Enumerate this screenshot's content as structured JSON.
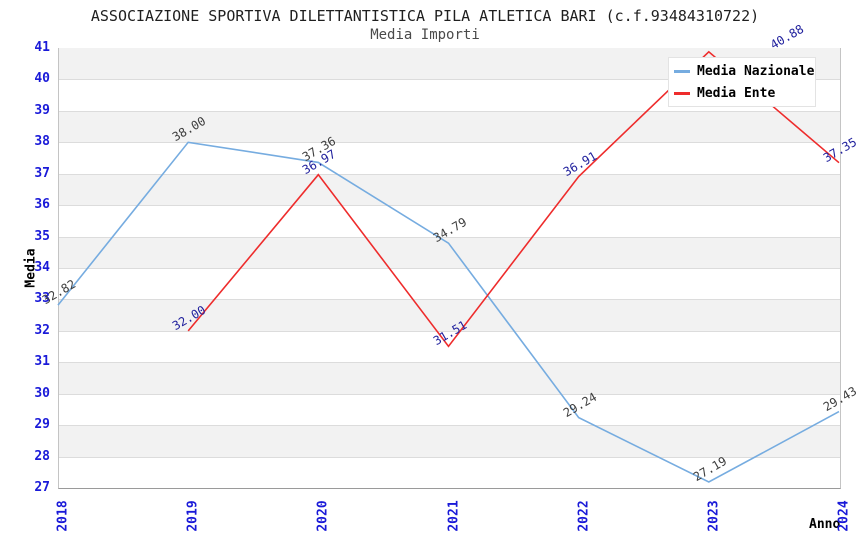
{
  "header": {
    "title": "ASSOCIAZIONE SPORTIVA DILETTANTISTICA PILA ATLETICA BARI (c.f.93484310722)",
    "subtitle": "Media Importi"
  },
  "chart_data": {
    "type": "line",
    "title": "ASSOCIAZIONE SPORTIVA DILETTANTISTICA PILA ATLETICA BARI (c.f.93484310722)",
    "subtitle": "Media Importi",
    "xlabel": "Anno",
    "ylabel": "Media",
    "x": [
      2018,
      2019,
      2020,
      2021,
      2022,
      2023,
      2024
    ],
    "series": [
      {
        "name": "Media Nazionale",
        "color": "#76ace0",
        "label_color": "#3d3d3d",
        "values": [
          32.82,
          38.0,
          37.36,
          34.79,
          29.24,
          27.19,
          29.43
        ]
      },
      {
        "name": "Media Ente",
        "color": "#ee2c2c",
        "label_color": "#20209d",
        "values": [
          null,
          32.0,
          36.97,
          31.51,
          36.91,
          40.88,
          37.35
        ]
      }
    ],
    "ylim": [
      27,
      41
    ],
    "ytick_step": 1,
    "value_decimals": 2,
    "grid": "horizontal",
    "band_fill": "alternating",
    "legend_position": "top-right",
    "colors": {
      "tick_label": "#1a1ad8",
      "band": "#f2f2f2",
      "gridline": "#dcdcdc",
      "background": "#ffffff"
    }
  }
}
